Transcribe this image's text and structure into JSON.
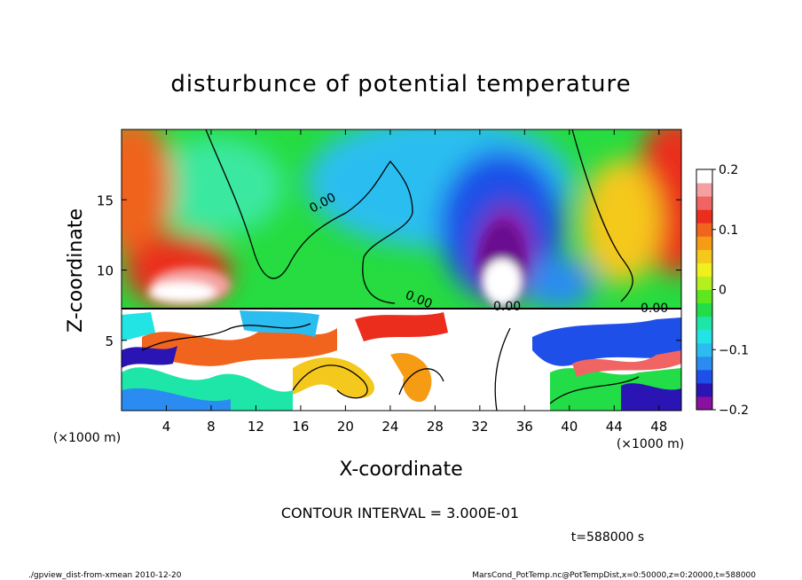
{
  "chart_data": {
    "type": "heatmap",
    "title": "disturbunce of potential temperature",
    "xlabel": "X-coordinate",
    "ylabel": "Z-coordinate",
    "x_unit_label": "(×1000 m)",
    "y_unit_label": "(×1000 m)",
    "xlim": [
      0,
      50
    ],
    "ylim": [
      0,
      20
    ],
    "x_ticks": [
      4,
      8,
      12,
      16,
      20,
      24,
      28,
      32,
      36,
      40,
      44,
      48
    ],
    "y_ticks": [
      5,
      10,
      15
    ],
    "colorbar": {
      "range": [
        -0.2,
        0.2
      ],
      "tick_values": [
        0.2,
        0.1,
        0,
        -0.1,
        -0.2
      ],
      "tick_labels": [
        "0.2",
        "0.1",
        "0",
        "−0.1",
        "−0.2"
      ],
      "colors": [
        "#8a10a0",
        "#2a14b4",
        "#1e4fe8",
        "#2a8cf0",
        "#2bbdf0",
        "#22e4e4",
        "#1ee6a8",
        "#22dc48",
        "#5ee61e",
        "#b4ef1e",
        "#f0f01e",
        "#f5c81e",
        "#f59b14",
        "#f0641e",
        "#eb2d1e",
        "#f06464",
        "#f5a0a0",
        "#ffffff"
      ]
    },
    "contour_labels": [
      "0.00",
      "0.00",
      "0.00",
      "0.00"
    ],
    "contour_interval_text": "CONTOUR INTERVAL = 3.000E-01",
    "time_label": "t=588000 s",
    "grid": false
  },
  "footer": {
    "left": "./gpview_dist-from-xmean  2010-12-20",
    "right": "MarsCond_PotTemp.nc@PotTempDist,x=0:50000,z=0:20000,t=588000"
  }
}
